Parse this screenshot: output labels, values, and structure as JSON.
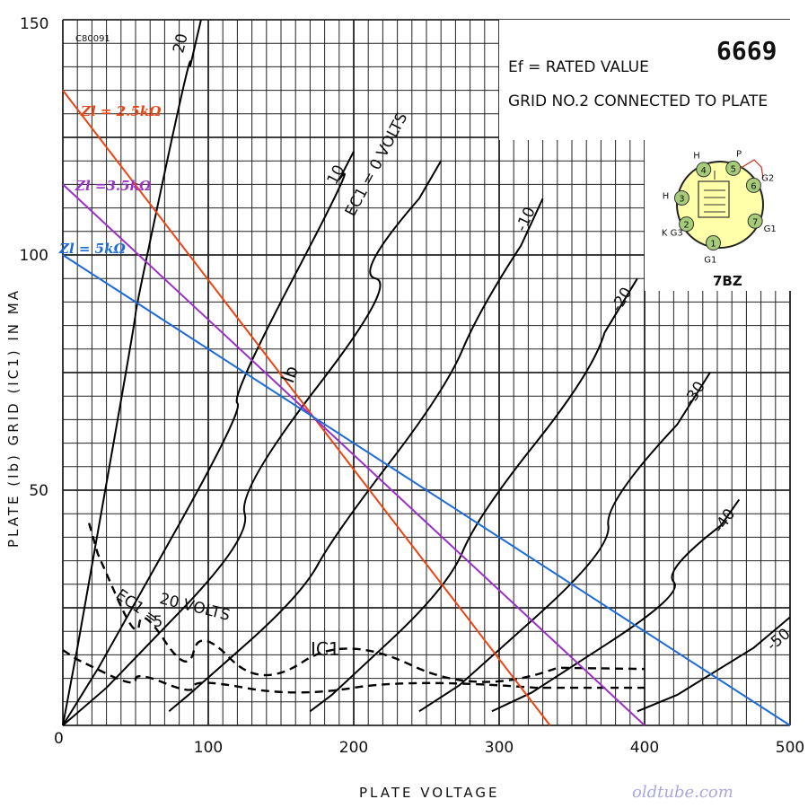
{
  "chart_data": {
    "type": "line",
    "title": "6669",
    "xlabel": "PLATE VOLTAGE",
    "ylabel": "PLATE (Ib) GRID (IC1) IN MA",
    "xlim": [
      0,
      500
    ],
    "ylim": [
      0,
      150
    ],
    "x_ticks": [
      "0",
      "100",
      "200",
      "300",
      "400",
      "500"
    ],
    "y_ticks": [
      "50",
      "100",
      "150"
    ],
    "y_tick_values": [
      50,
      100,
      150
    ],
    "grid": true,
    "chart_code": "C80091",
    "notes": [
      "Ef = RATED VALUE",
      "GRID NO.2 CONNECTED TO PLATE"
    ],
    "series": [
      {
        "label": "20",
        "group": "Ib",
        "points": [
          [
            0,
            0
          ],
          [
            20,
            33
          ],
          [
            40,
            70
          ],
          [
            60,
            105
          ],
          [
            80,
            130
          ],
          [
            95,
            150
          ]
        ]
      },
      {
        "label": "10",
        "group": "Ib",
        "points": [
          [
            0,
            0
          ],
          [
            50,
            25
          ],
          [
            100,
            55
          ],
          [
            140,
            82
          ],
          [
            180,
            110
          ],
          [
            200,
            122
          ]
        ]
      },
      {
        "label": "EC1 = 0 VOLTS",
        "group": "Ib",
        "points": [
          [
            0,
            0
          ],
          [
            60,
            16
          ],
          [
            100,
            32
          ],
          [
            150,
            58
          ],
          [
            200,
            86
          ],
          [
            230,
            104
          ],
          [
            260,
            120
          ]
        ]
      },
      {
        "label": "-10",
        "group": "Ib",
        "points": [
          [
            73,
            3
          ],
          [
            100,
            10
          ],
          [
            150,
            24
          ],
          [
            200,
            44
          ],
          [
            250,
            68
          ],
          [
            300,
            92
          ],
          [
            330,
            112
          ]
        ]
      },
      {
        "label": "-20",
        "group": "Ib",
        "points": [
          [
            170,
            3
          ],
          [
            200,
            10
          ],
          [
            250,
            26
          ],
          [
            300,
            48
          ],
          [
            350,
            72
          ],
          [
            395,
            95
          ]
        ]
      },
      {
        "label": "-30",
        "group": "Ib",
        "points": [
          [
            245,
            3
          ],
          [
            300,
            14
          ],
          [
            350,
            32
          ],
          [
            400,
            53
          ],
          [
            445,
            75
          ]
        ]
      },
      {
        "label": "-40",
        "group": "Ib",
        "points": [
          [
            295,
            3
          ],
          [
            350,
            11
          ],
          [
            400,
            24
          ],
          [
            440,
            37
          ],
          [
            465,
            48
          ]
        ]
      },
      {
        "label": "-50",
        "group": "Ib",
        "points": [
          [
            395,
            3
          ],
          [
            450,
            10
          ],
          [
            500,
            23
          ]
        ]
      },
      {
        "label": "20 VOLTS",
        "group": "IC1",
        "points": [
          [
            18,
            43
          ],
          [
            30,
            30
          ],
          [
            45,
            24
          ],
          [
            60,
            19
          ],
          [
            80,
            17
          ],
          [
            100,
            14.5
          ],
          [
            130,
            14
          ],
          [
            200,
            13
          ],
          [
            280,
            12.5
          ],
          [
            400,
            12
          ]
        ]
      },
      {
        "label": "5",
        "group": "IC1",
        "points": [
          [
            0,
            16
          ],
          [
            20,
            12
          ],
          [
            40,
            10
          ],
          [
            60,
            9.5
          ],
          [
            80,
            8.5
          ],
          [
            100,
            8
          ],
          [
            150,
            8
          ],
          [
            250,
            8
          ],
          [
            400,
            8
          ]
        ]
      }
    ],
    "load_lines": [
      {
        "label": "Zl = 2.5kΩ",
        "color": "#ee4411",
        "y0": 135,
        "x0": 335
      },
      {
        "label": "Zl =3.5kΩ",
        "color": "#9b30c8",
        "y0": 115,
        "x0": 400
      },
      {
        "label": "Zl = 5kΩ",
        "color": "#1c6bd9",
        "y0": 100,
        "x0": 500
      }
    ],
    "annotations": [
      "Ib",
      "IC1",
      "EC1 =",
      "VOLTS"
    ],
    "basing": {
      "name": "7BZ",
      "pins": [
        {
          "num": "1",
          "label": "G1"
        },
        {
          "num": "2",
          "label": "K G3"
        },
        {
          "num": "3",
          "label": "H"
        },
        {
          "num": "4",
          "label": "H"
        },
        {
          "num": "5",
          "label": "P"
        },
        {
          "num": "6",
          "label": "G2"
        },
        {
          "num": "7",
          "label": "G1"
        }
      ]
    },
    "source": "oldtube.com"
  }
}
